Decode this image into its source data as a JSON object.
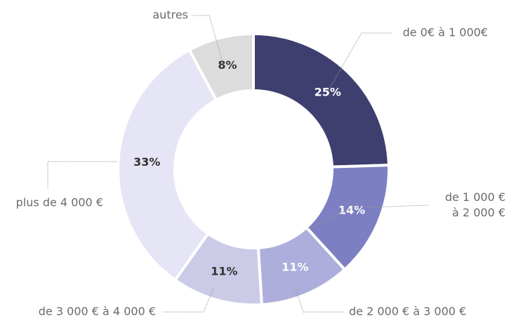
{
  "chart_data": {
    "type": "donut",
    "categories": [
      "de 0€ à 1 000€",
      "de 1 000 €\nà 2 000 €",
      "de 2 000 € à 3 000 €",
      "de 3 000 € à 4 000 €",
      "plus de 4 000 €",
      "autres"
    ],
    "values": [
      25,
      14,
      11,
      11,
      33,
      8
    ],
    "value_labels": [
      "25%",
      "14%",
      "11%",
      "11%",
      "33%",
      "8%"
    ],
    "colors": [
      "#3e3f6f",
      "#7c7fc1",
      "#adaedb",
      "#cbcbe8",
      "#e6e5f5",
      "#dcdcdc"
    ]
  }
}
